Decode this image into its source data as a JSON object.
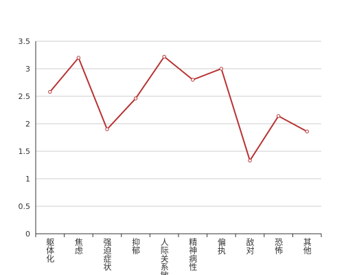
{
  "chart_data": {
    "type": "line",
    "categories": [
      "躯体化",
      "焦虑",
      "强迫症状",
      "抑郁",
      "人际关系敏感",
      "精神病性",
      "偏执",
      "敌对",
      "恐怖",
      "其他"
    ],
    "series": [
      {
        "color": "#b83232",
        "values": [
          2.58,
          3.2,
          1.9,
          2.46,
          3.22,
          2.8,
          3.0,
          1.33,
          2.14,
          1.86
        ]
      }
    ],
    "ylim": [
      0,
      3.5
    ],
    "yticks": [
      0,
      0.5,
      1,
      1.5,
      2,
      2.5,
      3,
      3.5
    ],
    "grid": true
  }
}
